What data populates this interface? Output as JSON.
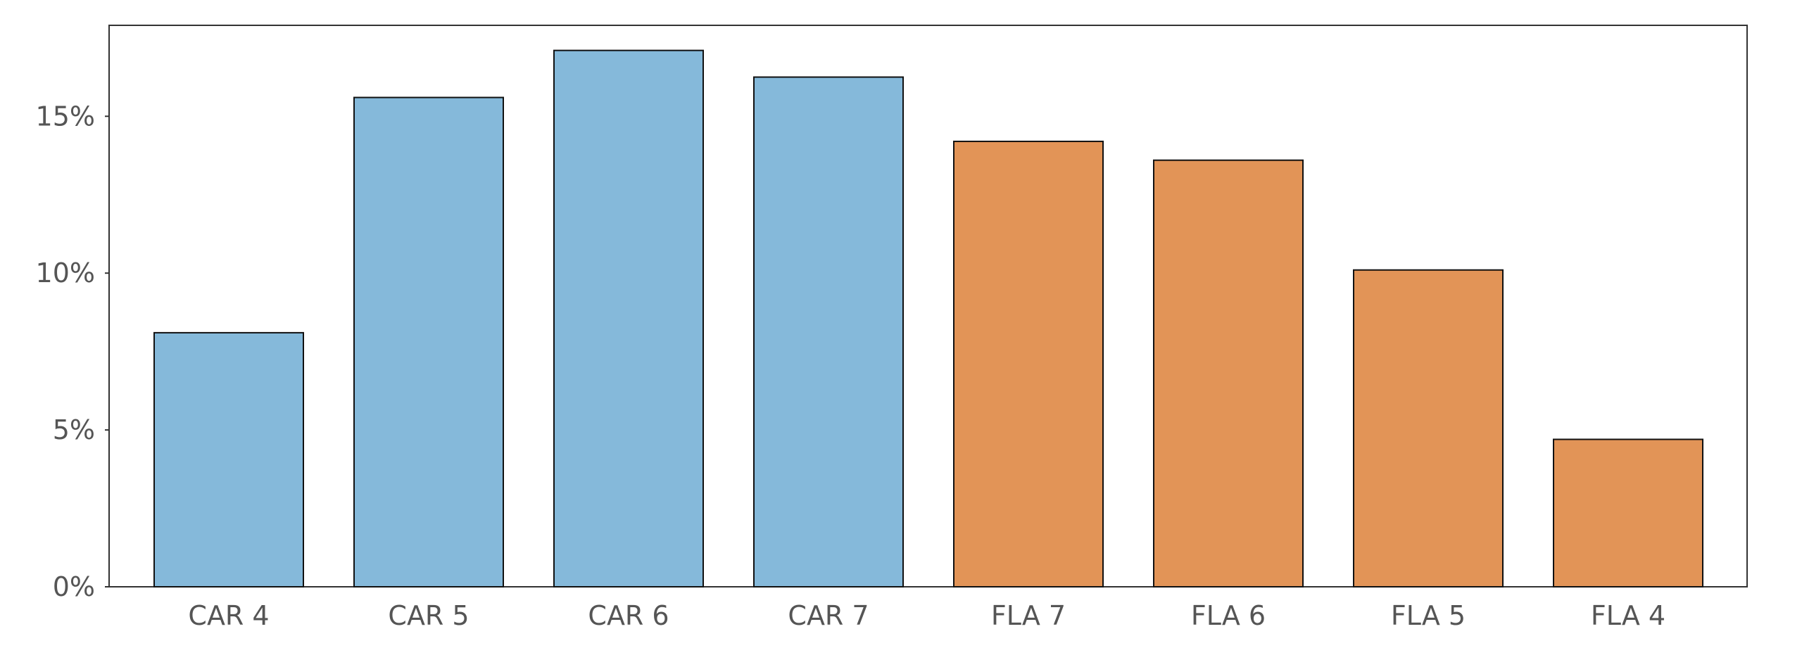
{
  "chart_data": {
    "type": "bar",
    "categories": [
      "CAR 4",
      "CAR 5",
      "CAR 6",
      "CAR 7",
      "FLA 7",
      "FLA 6",
      "FLA 5",
      "FLA 4"
    ],
    "values": [
      8.1,
      15.6,
      17.1,
      16.25,
      14.2,
      13.6,
      10.1,
      4.7
    ],
    "bar_colors": [
      "#85b9da",
      "#85b9da",
      "#85b9da",
      "#85b9da",
      "#e29457",
      "#e29457",
      "#e29457",
      "#e29457"
    ],
    "yticks": [
      0,
      5,
      10,
      15
    ],
    "ytick_labels": [
      "0%",
      "5%",
      "10%",
      "15%"
    ],
    "ylim": [
      0,
      17.9
    ],
    "unit": "%",
    "grid": false,
    "legend": "none"
  }
}
